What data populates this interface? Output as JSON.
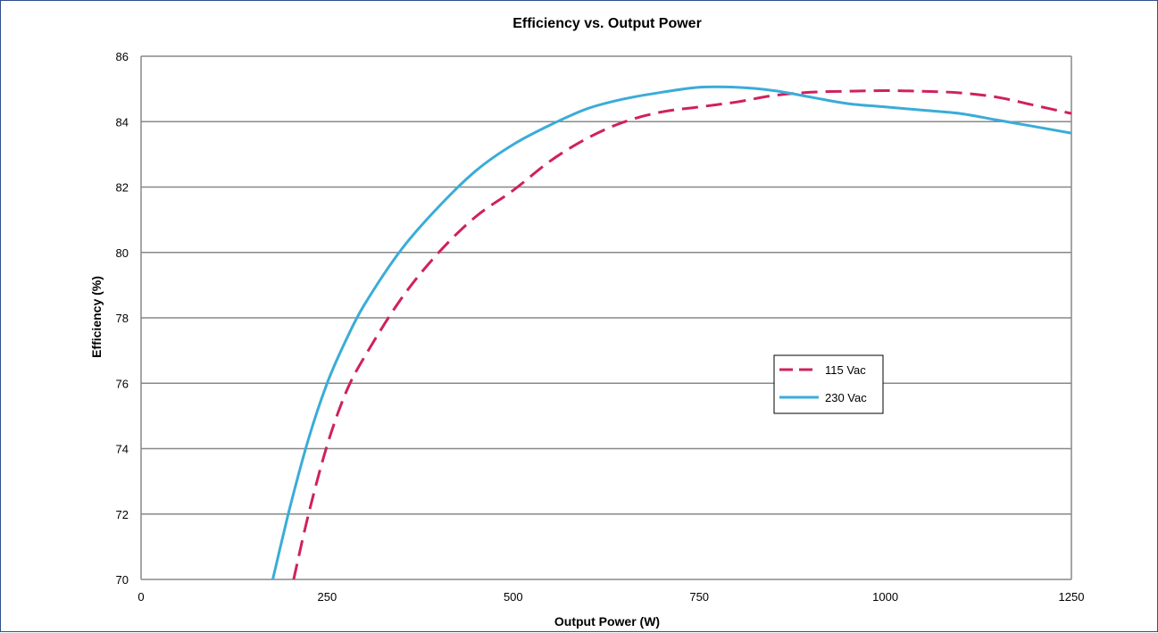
{
  "chart_data": {
    "type": "line",
    "title": "Efficiency vs. Output Power",
    "xlabel": "Output Power (W)",
    "ylabel": "Efficiency (%)",
    "xlim": [
      0,
      1250
    ],
    "ylim": [
      70,
      86
    ],
    "xticks": [
      0,
      250,
      500,
      750,
      1000,
      1250
    ],
    "yticks": [
      70,
      72,
      74,
      76,
      78,
      80,
      82,
      84,
      86
    ],
    "grid": "horizontal",
    "legend": "center-right",
    "series": [
      {
        "name": "115 Vac",
        "color": "#d0205f",
        "style": "dashed",
        "x": [
          205,
          225,
          250,
          275,
          300,
          350,
          400,
          450,
          500,
          550,
          600,
          650,
          700,
          750,
          800,
          850,
          900,
          950,
          1000,
          1050,
          1100,
          1150,
          1200,
          1250
        ],
        "y": [
          70.0,
          72.0,
          74.1,
          75.7,
          76.8,
          78.6,
          80.0,
          81.1,
          81.9,
          82.8,
          83.5,
          84.0,
          84.3,
          84.45,
          84.6,
          84.8,
          84.9,
          84.93,
          84.95,
          84.93,
          84.88,
          84.75,
          84.5,
          84.25
        ]
      },
      {
        "name": "230 Vac",
        "color": "#3aacd8",
        "style": "solid",
        "x": [
          177,
          200,
          225,
          250,
          275,
          300,
          350,
          400,
          450,
          500,
          550,
          600,
          650,
          700,
          750,
          800,
          850,
          900,
          950,
          1000,
          1050,
          1100,
          1150,
          1200,
          1250
        ],
        "y": [
          70.0,
          72.2,
          74.3,
          76.0,
          77.3,
          78.4,
          80.1,
          81.4,
          82.5,
          83.3,
          83.9,
          84.4,
          84.7,
          84.9,
          85.05,
          85.05,
          84.95,
          84.75,
          84.55,
          84.45,
          84.35,
          84.25,
          84.05,
          83.85,
          83.65
        ]
      }
    ]
  }
}
